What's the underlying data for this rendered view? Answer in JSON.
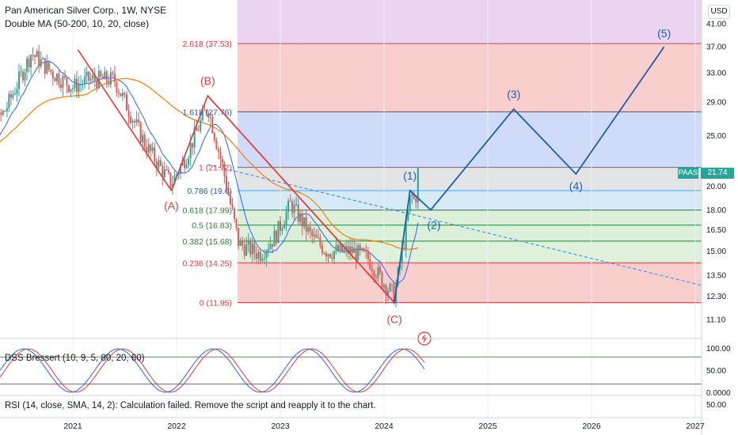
{
  "header": {
    "title": "Pan American Silver Corp., 1W, NYSE",
    "indicator": "Double MA (50-200, 10, 20, close)"
  },
  "currency_button": "USD",
  "ticker_tag": {
    "symbol": "PAAS",
    "price": "21.74"
  },
  "dss_label": "DSS Bressert (10, 9, 5, 80, 20, 60)",
  "rsi_label": "RSI (14, close, SMA, 14, 2): Calculation failed. Remove the script and reapply it to the chart.",
  "colors": {
    "up": "#26a69a",
    "down": "#ef5350",
    "ma_fast": "#2962ff",
    "ma_slow": "#f57c00",
    "wave_abc": "#e53935",
    "wave_impulse": "#1e5fa8",
    "fib_line": "#e53935"
  },
  "chart_data": {
    "type": "candlestick",
    "title": "Pan American Silver Corp., 1W, NYSE",
    "y_axis": {
      "scale": "log",
      "ylim": [
        10.2,
        45.5
      ],
      "ticks": [
        "41.00",
        "37.00",
        "33.00",
        "29.00",
        "25.00",
        "20.00",
        "18.00",
        "16.50",
        "15.00",
        "13.50",
        "12.30",
        "11.10"
      ]
    },
    "x_axis": {
      "ticks": [
        "2021",
        "2022",
        "2023",
        "2024",
        "2025",
        "2026",
        "2027"
      ]
    },
    "last_price": 21.74,
    "fib_levels": [
      {
        "ratio": "0",
        "label": "0 (11.95)",
        "price": 11.95
      },
      {
        "ratio": "0.236",
        "label": "0.236 (14.25)",
        "price": 14.25
      },
      {
        "ratio": "0.382",
        "label": "0.382 (15.68)",
        "price": 15.68
      },
      {
        "ratio": "0.5",
        "label": "0.5 (16.83)",
        "price": 16.83
      },
      {
        "ratio": "0.618",
        "label": "0.618 (17.99)",
        "price": 17.99
      },
      {
        "ratio": "0.786",
        "label": "0.786 (19.6)",
        "price": 19.6
      },
      {
        "ratio": "1",
        "label": "1 (21.72)",
        "price": 21.72
      },
      {
        "ratio": "1.618",
        "label": "1.618 (27.76)",
        "price": 27.76
      },
      {
        "ratio": "2.618",
        "label": "2.618 (37.53)",
        "price": 37.53
      }
    ],
    "waves_abc": [
      {
        "label": "(A)",
        "date": 2021.95,
        "price": 19.6
      },
      {
        "label": "(B)",
        "date": 2022.3,
        "price": 29.8
      },
      {
        "label": "(C)",
        "date": 2024.1,
        "price": 11.95
      }
    ],
    "waves_impulse": [
      {
        "label": "(1)",
        "date": 2024.25,
        "price": 19.6
      },
      {
        "label": "(2)",
        "date": 2024.45,
        "price": 18.0
      },
      {
        "label": "(3)",
        "date": 2025.25,
        "price": 28.1
      },
      {
        "label": "(4)",
        "date": 2025.85,
        "price": 21.1
      },
      {
        "label": "(5)",
        "date": 2026.7,
        "price": 37.0
      }
    ],
    "dss": {
      "ylim": [
        0,
        100
      ],
      "ticks": [
        "100.00",
        "50.00",
        "0.0000"
      ],
      "upper": 80,
      "lower": 20
    },
    "rsi": {
      "ticks": [
        "50.00"
      ]
    }
  }
}
